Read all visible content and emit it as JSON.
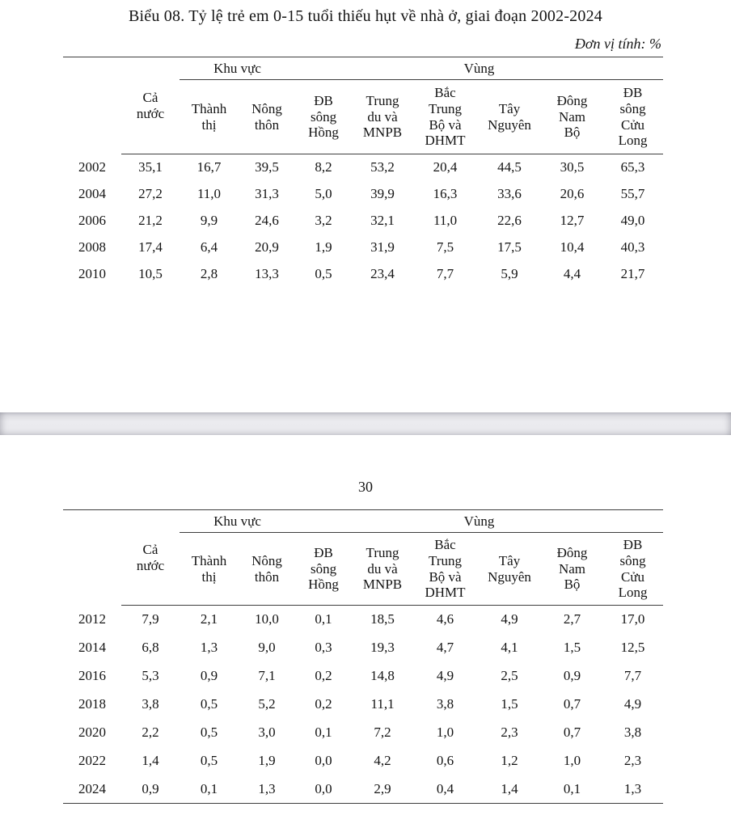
{
  "page1": {
    "title": "Biểu 08. Tỷ lệ trẻ em 0-15 tuổi thiếu hụt về nhà ở, giai đoạn 2002-2024",
    "unit_note": "Đơn vị tính: %"
  },
  "page2": {
    "page_number": "30"
  },
  "header": {
    "all_country": "Cả\nnước",
    "group_area": "Khu vực",
    "group_region": "Vùng",
    "sub_columns": [
      "Thành\nthị",
      "Nông\nthôn",
      "ĐB\nsông\nHồng",
      "Trung\ndu và\nMNPB",
      "Bắc\nTrung\nBộ và\nDHMT",
      "Tây\nNguyên",
      "Đông\nNam\nBộ",
      "ĐB\nsông\nCửu\nLong"
    ]
  },
  "tables": [
    {
      "rows": [
        [
          "2002",
          "35,1",
          "16,7",
          "39,5",
          "8,2",
          "53,2",
          "20,4",
          "44,5",
          "30,5",
          "65,3"
        ],
        [
          "2004",
          "27,2",
          "11,0",
          "31,3",
          "5,0",
          "39,9",
          "16,3",
          "33,6",
          "20,6",
          "55,7"
        ],
        [
          "2006",
          "21,2",
          "9,9",
          "24,6",
          "3,2",
          "32,1",
          "11,0",
          "22,6",
          "12,7",
          "49,0"
        ],
        [
          "2008",
          "17,4",
          "6,4",
          "20,9",
          "1,9",
          "31,9",
          "7,5",
          "17,5",
          "10,4",
          "40,3"
        ],
        [
          "2010",
          "10,5",
          "2,8",
          "13,3",
          "0,5",
          "23,4",
          "7,7",
          "5,9",
          "4,4",
          "21,7"
        ]
      ]
    },
    {
      "rows": [
        [
          "2012",
          "7,9",
          "2,1",
          "10,0",
          "0,1",
          "18,5",
          "4,6",
          "4,9",
          "2,7",
          "17,0"
        ],
        [
          "2014",
          "6,8",
          "1,3",
          "9,0",
          "0,3",
          "19,3",
          "4,7",
          "4,1",
          "1,5",
          "12,5"
        ],
        [
          "2016",
          "5,3",
          "0,9",
          "7,1",
          "0,2",
          "14,8",
          "4,9",
          "2,5",
          "0,9",
          "7,7"
        ],
        [
          "2018",
          "3,8",
          "0,5",
          "5,2",
          "0,2",
          "11,1",
          "3,8",
          "1,5",
          "0,7",
          "4,9"
        ],
        [
          "2020",
          "2,2",
          "0,5",
          "3,0",
          "0,1",
          "7,2",
          "1,0",
          "2,3",
          "0,7",
          "3,8"
        ],
        [
          "2022",
          "1,4",
          "0,5",
          "1,9",
          "0,0",
          "4,2",
          "0,6",
          "1,2",
          "1,0",
          "2,3"
        ],
        [
          "2024",
          "0,9",
          "0,1",
          "1,3",
          "0,0",
          "2,9",
          "0,4",
          "1,4",
          "0,1",
          "1,3"
        ]
      ]
    }
  ],
  "colors": {
    "rule": "#3d3d3d",
    "page_background": "#ffffff",
    "page_break_gray": "#e9e9ed"
  }
}
